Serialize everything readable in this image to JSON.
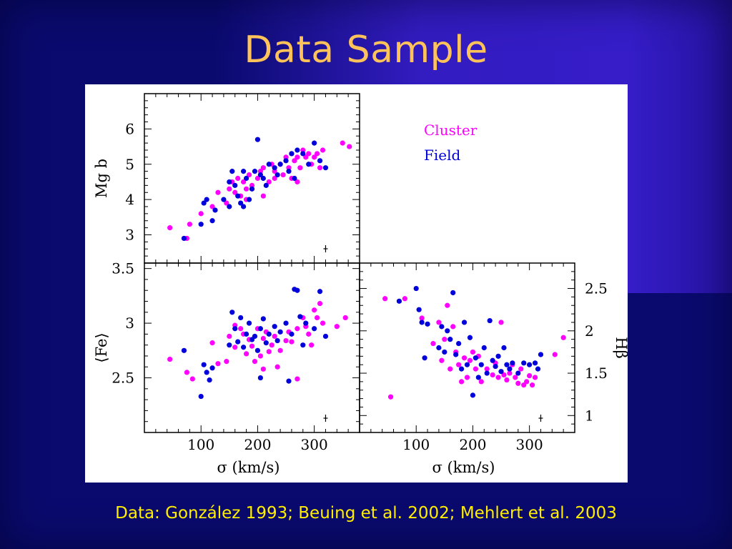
{
  "slide": {
    "title": "Data Sample",
    "caption": "Data: González 1993; Beuing et al. 2002; Mehlert et al. 2003"
  },
  "colors": {
    "cluster": "#ff00ff",
    "field": "#0000dd",
    "background": "#0a0a6e",
    "title": "#ffc35a",
    "caption": "#ffee00"
  },
  "legend": [
    {
      "label": "Cluster",
      "color": "#ff00ff"
    },
    {
      "label": "Field",
      "color": "#0000dd"
    }
  ],
  "chart_data": [
    {
      "type": "scatter",
      "panel": "top-left",
      "xlabel": "",
      "ylabel": "Mg b",
      "xlim": [
        0,
        380
      ],
      "ylim": [
        2.2,
        7.0
      ],
      "xticks": [
        100,
        200,
        300
      ],
      "xtick_labels": [],
      "yticks": [
        3,
        4,
        5,
        6
      ],
      "ytick_labels": [
        "3",
        "4",
        "5",
        "6"
      ],
      "series": [
        {
          "name": "Cluster",
          "points": [
            [
              45,
              3.2
            ],
            [
              75,
              2.9
            ],
            [
              80,
              3.3
            ],
            [
              100,
              3.6
            ],
            [
              120,
              3.8
            ],
            [
              130,
              4.2
            ],
            [
              145,
              3.9
            ],
            [
              150,
              4.3
            ],
            [
              155,
              4.5
            ],
            [
              160,
              4.2
            ],
            [
              165,
              4.6
            ],
            [
              170,
              4.1
            ],
            [
              175,
              4.5
            ],
            [
              180,
              4.3
            ],
            [
              185,
              4.7
            ],
            [
              190,
              4.4
            ],
            [
              200,
              4.6
            ],
            [
              205,
              4.8
            ],
            [
              210,
              4.9
            ],
            [
              220,
              4.5
            ],
            [
              225,
              5.0
            ],
            [
              230,
              4.8
            ],
            [
              240,
              5.0
            ],
            [
              245,
              4.7
            ],
            [
              250,
              5.2
            ],
            [
              255,
              4.9
            ],
            [
              260,
              5.3
            ],
            [
              265,
              5.1
            ],
            [
              270,
              5.2
            ],
            [
              275,
              4.9
            ],
            [
              280,
              5.4
            ],
            [
              285,
              5.2
            ],
            [
              290,
              5.3
            ],
            [
              295,
              5.0
            ],
            [
              300,
              5.2
            ],
            [
              305,
              5.3
            ],
            [
              310,
              4.9
            ],
            [
              315,
              5.4
            ],
            [
              350,
              5.6
            ],
            [
              362,
              5.5
            ],
            [
              260,
              4.6
            ],
            [
              270,
              4.5
            ],
            [
              180,
              4.0
            ],
            [
              210,
              4.1
            ],
            [
              230,
              4.6
            ]
          ]
        },
        {
          "name": "Field",
          "points": [
            [
              70,
              2.9
            ],
            [
              100,
              3.3
            ],
            [
              105,
              3.9
            ],
            [
              110,
              4.0
            ],
            [
              120,
              3.4
            ],
            [
              125,
              3.7
            ],
            [
              140,
              4.0
            ],
            [
              150,
              4.5
            ],
            [
              155,
              4.8
            ],
            [
              160,
              4.4
            ],
            [
              165,
              4.1
            ],
            [
              170,
              3.9
            ],
            [
              175,
              4.8
            ],
            [
              180,
              4.6
            ],
            [
              185,
              4.0
            ],
            [
              190,
              4.3
            ],
            [
              195,
              4.8
            ],
            [
              200,
              5.7
            ],
            [
              205,
              4.7
            ],
            [
              210,
              4.6
            ],
            [
              215,
              4.4
            ],
            [
              220,
              5.0
            ],
            [
              230,
              4.9
            ],
            [
              235,
              4.7
            ],
            [
              240,
              5.0
            ],
            [
              250,
              5.1
            ],
            [
              255,
              4.8
            ],
            [
              260,
              5.3
            ],
            [
              265,
              4.6
            ],
            [
              270,
              5.4
            ],
            [
              280,
              5.3
            ],
            [
              290,
              5.0
            ],
            [
              300,
              5.6
            ],
            [
              310,
              5.1
            ],
            [
              320,
              4.9
            ],
            [
              150,
              3.8
            ],
            [
              175,
              3.8
            ]
          ]
        }
      ],
      "annotations": [
        "error-bar cross"
      ]
    },
    {
      "type": "scatter",
      "panel": "bottom-left",
      "xlabel": "σ (km/s)",
      "ylabel": "⟨Fe⟩",
      "xlim": [
        0,
        380
      ],
      "ylim": [
        2.0,
        3.55
      ],
      "xticks": [
        100,
        200,
        300
      ],
      "xtick_labels": [
        "100",
        "200",
        "300"
      ],
      "yticks": [
        2.5,
        3,
        3.5
      ],
      "ytick_labels": [
        "2.5",
        "3",
        "3.5"
      ],
      "series": [
        {
          "name": "Cluster",
          "points": [
            [
              45,
              2.67
            ],
            [
              75,
              2.55
            ],
            [
              85,
              2.49
            ],
            [
              120,
              2.82
            ],
            [
              130,
              2.63
            ],
            [
              145,
              2.65
            ],
            [
              150,
              2.88
            ],
            [
              160,
              2.78
            ],
            [
              170,
              2.95
            ],
            [
              175,
              2.9
            ],
            [
              180,
              2.72
            ],
            [
              185,
              2.85
            ],
            [
              190,
              2.79
            ],
            [
              195,
              2.65
            ],
            [
              200,
              2.95
            ],
            [
              205,
              2.7
            ],
            [
              210,
              2.86
            ],
            [
              215,
              2.92
            ],
            [
              220,
              2.74
            ],
            [
              225,
              2.8
            ],
            [
              230,
              2.88
            ],
            [
              235,
              2.6
            ],
            [
              240,
              2.75
            ],
            [
              250,
              2.84
            ],
            [
              255,
              2.92
            ],
            [
              260,
              2.83
            ],
            [
              270,
              2.95
            ],
            [
              280,
              3.05
            ],
            [
              285,
              2.97
            ],
            [
              290,
              2.9
            ],
            [
              295,
              2.8
            ],
            [
              300,
              3.12
            ],
            [
              305,
              3.05
            ],
            [
              310,
              3.18
            ],
            [
              315,
              3.0
            ],
            [
              340,
              2.97
            ],
            [
              355,
              3.05
            ],
            [
              270,
              2.49
            ],
            [
              210,
              2.58
            ],
            [
              160,
              2.98
            ]
          ]
        },
        {
          "name": "Field",
          "points": [
            [
              70,
              2.75
            ],
            [
              100,
              2.33
            ],
            [
              105,
              2.62
            ],
            [
              110,
              2.55
            ],
            [
              115,
              2.48
            ],
            [
              120,
              2.59
            ],
            [
              150,
              2.8
            ],
            [
              155,
              3.1
            ],
            [
              160,
              2.95
            ],
            [
              165,
              2.83
            ],
            [
              170,
              3.05
            ],
            [
              175,
              2.78
            ],
            [
              180,
              2.9
            ],
            [
              185,
              3.0
            ],
            [
              190,
              2.85
            ],
            [
              195,
              2.88
            ],
            [
              200,
              2.75
            ],
            [
              205,
              2.95
            ],
            [
              210,
              3.04
            ],
            [
              215,
              2.82
            ],
            [
              220,
              2.9
            ],
            [
              230,
              2.97
            ],
            [
              235,
              2.84
            ],
            [
              240,
              2.92
            ],
            [
              250,
              3.0
            ],
            [
              255,
              2.47
            ],
            [
              260,
              2.9
            ],
            [
              265,
              3.31
            ],
            [
              270,
              3.3
            ],
            [
              275,
              3.06
            ],
            [
              280,
              2.8
            ],
            [
              285,
              3.0
            ],
            [
              300,
              2.95
            ],
            [
              310,
              3.29
            ],
            [
              320,
              2.88
            ],
            [
              205,
              2.5
            ]
          ]
        }
      ],
      "annotations": [
        "error-bar cross"
      ]
    },
    {
      "type": "scatter",
      "panel": "bottom-right",
      "xlabel": "σ (km/s)",
      "ylabel": "Hβ",
      "xlim": [
        0,
        380
      ],
      "ylim": [
        0.8,
        2.8
      ],
      "xticks": [
        100,
        200,
        300
      ],
      "xtick_labels": [
        "100",
        "200",
        "300"
      ],
      "yticks": [
        1,
        1.5,
        2,
        2.5
      ],
      "ytick_labels": [
        "1",
        "1.5",
        "2",
        "2.5"
      ],
      "series": [
        {
          "name": "Cluster",
          "points": [
            [
              45,
              2.38
            ],
            [
              55,
              1.22
            ],
            [
              80,
              2.38
            ],
            [
              110,
              2.15
            ],
            [
              130,
              1.85
            ],
            [
              140,
              2.1
            ],
            [
              145,
              1.65
            ],
            [
              150,
              1.9
            ],
            [
              155,
              2.3
            ],
            [
              160,
              1.55
            ],
            [
              165,
              2.05
            ],
            [
              170,
              1.75
            ],
            [
              175,
              1.6
            ],
            [
              180,
              1.4
            ],
            [
              185,
              1.68
            ],
            [
              190,
              1.45
            ],
            [
              195,
              1.65
            ],
            [
              200,
              1.75
            ],
            [
              205,
              1.55
            ],
            [
              210,
              1.7
            ],
            [
              215,
              1.4
            ],
            [
              225,
              1.55
            ],
            [
              235,
              1.48
            ],
            [
              240,
              1.62
            ],
            [
              245,
              1.45
            ],
            [
              250,
              2.1
            ],
            [
              255,
              1.48
            ],
            [
              260,
              1.42
            ],
            [
              265,
              1.5
            ],
            [
              270,
              1.6
            ],
            [
              275,
              1.45
            ],
            [
              280,
              1.38
            ],
            [
              285,
              1.55
            ],
            [
              290,
              1.36
            ],
            [
              295,
              1.4
            ],
            [
              300,
              1.47
            ],
            [
              305,
              1.36
            ],
            [
              310,
              1.45
            ],
            [
              345,
              1.72
            ],
            [
              360,
              1.92
            ]
          ]
        },
        {
          "name": "Field",
          "points": [
            [
              70,
              2.35
            ],
            [
              100,
              2.5
            ],
            [
              105,
              2.25
            ],
            [
              110,
              2.1
            ],
            [
              115,
              1.68
            ],
            [
              120,
              2.08
            ],
            [
              140,
              1.8
            ],
            [
              145,
              2.05
            ],
            [
              150,
              1.75
            ],
            [
              155,
              2.0
            ],
            [
              160,
              1.9
            ],
            [
              165,
              2.45
            ],
            [
              170,
              1.72
            ],
            [
              175,
              1.85
            ],
            [
              180,
              1.55
            ],
            [
              185,
              2.1
            ],
            [
              190,
              1.6
            ],
            [
              195,
              1.92
            ],
            [
              200,
              1.24
            ],
            [
              205,
              1.68
            ],
            [
              210,
              1.45
            ],
            [
              215,
              1.6
            ],
            [
              220,
              1.8
            ],
            [
              225,
              1.5
            ],
            [
              230,
              2.12
            ],
            [
              235,
              1.65
            ],
            [
              240,
              1.58
            ],
            [
              245,
              1.7
            ],
            [
              250,
              1.52
            ],
            [
              255,
              1.8
            ],
            [
              260,
              1.6
            ],
            [
              265,
              1.55
            ],
            [
              270,
              1.62
            ],
            [
              280,
              1.5
            ],
            [
              290,
              1.62
            ],
            [
              300,
              1.6
            ],
            [
              310,
              1.62
            ],
            [
              315,
              1.55
            ],
            [
              320,
              1.72
            ]
          ]
        }
      ],
      "annotations": [
        "error-bar cross"
      ]
    }
  ]
}
